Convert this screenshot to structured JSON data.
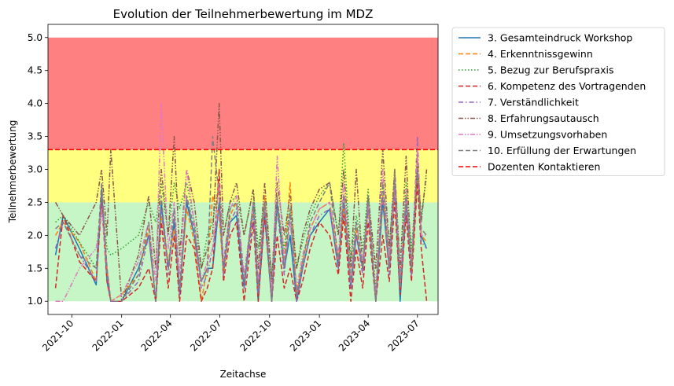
{
  "chart_data": {
    "type": "line",
    "title": "Evolution der Teilnehmerbewertung im MDZ",
    "xlabel": "Zeitachse",
    "ylabel": "Teilnehmerbewertung",
    "xlim": [
      "2021-08-18",
      "2023-08-08"
    ],
    "ylim": [
      0.8,
      5.2
    ],
    "x_ticks": [
      "2021-10-01",
      "2022-01-01",
      "2022-04-01",
      "2022-07-01",
      "2022-10-01",
      "2023-01-01",
      "2023-04-01",
      "2023-07-01"
    ],
    "x_tick_labels": [
      "2021-10",
      "2022-01",
      "2022-04",
      "2022-07",
      "2022-10",
      "2023-01",
      "2023-04",
      "2023-07"
    ],
    "y_ticks": [
      1.0,
      1.5,
      2.0,
      2.5,
      3.0,
      3.5,
      4.0,
      4.5,
      5.0
    ],
    "y_tick_labels": [
      "1.0",
      "1.5",
      "2.0",
      "2.5",
      "3.0",
      "3.5",
      "4.0",
      "4.5",
      "5.0"
    ],
    "x_tick_rotation": 45,
    "legend_placement": "outside-right-top",
    "grid": false,
    "bands": [
      {
        "from": 1.0,
        "to": 2.5,
        "color": "#c6f5c6"
      },
      {
        "from": 2.5,
        "to": 3.3,
        "color": "#ffff80"
      },
      {
        "from": 3.3,
        "to": 5.0,
        "color": "#ff8080"
      }
    ],
    "x": [
      "2021-09-01",
      "2021-09-15",
      "2021-10-15",
      "2021-11-15",
      "2021-11-25",
      "2021-12-05",
      "2021-12-12",
      "2022-01-01",
      "2022-02-01",
      "2022-02-20",
      "2022-03-05",
      "2022-03-15",
      "2022-03-28",
      "2022-04-08",
      "2022-04-18",
      "2022-05-01",
      "2022-05-15",
      "2022-05-28",
      "2022-06-08",
      "2022-06-18",
      "2022-06-30",
      "2022-07-08",
      "2022-07-20",
      "2022-08-01",
      "2022-08-15",
      "2022-09-01",
      "2022-09-10",
      "2022-09-22",
      "2022-10-05",
      "2022-10-15",
      "2022-10-28",
      "2022-11-08",
      "2022-11-20",
      "2022-12-01",
      "2022-12-15",
      "2023-01-01",
      "2023-01-20",
      "2023-02-05",
      "2023-02-15",
      "2023-02-28",
      "2023-03-10",
      "2023-03-22",
      "2023-04-01",
      "2023-04-15",
      "2023-04-28",
      "2023-05-10",
      "2023-05-20",
      "2023-05-30",
      "2023-06-10",
      "2023-06-20",
      "2023-07-01",
      "2023-07-08",
      "2023-07-18"
    ],
    "series": [
      {
        "name": "3. Gesamteindruck Workshop",
        "style": "solid",
        "color": "#1f77b4",
        "values": [
          1.7,
          2.3,
          1.8,
          1.25,
          2.7,
          1.3,
          1.0,
          1.0,
          1.5,
          2.0,
          1.0,
          2.5,
          1.5,
          2.2,
          1.1,
          2.5,
          2.0,
          1.3,
          1.5,
          1.5,
          2.5,
          1.5,
          2.2,
          2.3,
          1.2,
          2.5,
          1.0,
          2.3,
          1.0,
          2.5,
          1.5,
          2.0,
          1.0,
          1.5,
          2.0,
          2.2,
          2.4,
          1.5,
          2.5,
          1.2,
          2.0,
          1.5,
          2.5,
          1.0,
          2.5,
          1.5,
          2.8,
          1.0,
          2.5,
          1.5,
          3.0,
          2.0,
          1.8
        ]
      },
      {
        "name": "4. Erkenntnissgewinn",
        "style": "dashed",
        "color": "#ff7f0e",
        "values": [
          2.0,
          2.2,
          1.9,
          1.3,
          2.5,
          1.5,
          1.0,
          1.1,
          1.4,
          2.1,
          1.0,
          2.3,
          1.6,
          2.1,
          1.2,
          2.4,
          1.9,
          1.0,
          1.5,
          2.6,
          2.3,
          1.4,
          2.3,
          2.5,
          1.3,
          2.4,
          1.2,
          2.6,
          1.0,
          2.6,
          1.6,
          2.8,
          1.1,
          1.6,
          2.1,
          2.4,
          2.5,
          1.6,
          2.4,
          1.3,
          2.1,
          1.5,
          2.4,
          1.1,
          2.6,
          1.6,
          2.7,
          1.2,
          2.6,
          1.4,
          2.9,
          2.0,
          1.9
        ]
      },
      {
        "name": "5. Bezug zur Berufspraxis",
        "style": "dotted",
        "color": "#2ca02c",
        "values": [
          2.2,
          2.3,
          1.9,
          1.5,
          2.6,
          1.8,
          1.7,
          1.8,
          2.0,
          2.5,
          2.2,
          2.8,
          2.0,
          2.8,
          2.4,
          2.8,
          2.2,
          1.5,
          2.0,
          2.2,
          2.8,
          2.0,
          2.5,
          2.6,
          2.0,
          2.7,
          1.8,
          2.5,
          1.4,
          2.4,
          1.8,
          2.4,
          1.5,
          1.9,
          2.3,
          2.6,
          2.8,
          2.0,
          3.4,
          1.6,
          2.3,
          1.8,
          2.7,
          1.2,
          2.8,
          1.8,
          2.9,
          1.4,
          2.8,
          1.8,
          3.0,
          2.3,
          2.9
        ]
      },
      {
        "name": "6. Kompetenz des Vortragenden",
        "style": "dashed",
        "color": "#d62728",
        "values": [
          1.2,
          2.3,
          1.6,
          1.3,
          2.5,
          1.3,
          1.0,
          1.0,
          1.2,
          1.5,
          1.0,
          2.2,
          1.2,
          2.0,
          1.0,
          2.0,
          1.8,
          1.0,
          1.2,
          1.5,
          3.0,
          1.3,
          2.0,
          2.2,
          1.0,
          2.2,
          1.0,
          2.3,
          1.0,
          2.0,
          1.2,
          1.5,
          1.0,
          1.3,
          1.8,
          2.2,
          2.0,
          1.4,
          2.3,
          1.0,
          1.8,
          1.2,
          2.2,
          1.0,
          2.0,
          1.3,
          2.5,
          1.1,
          2.3,
          1.3,
          2.8,
          1.8,
          1.0
        ]
      },
      {
        "name": "7. Verständlichkeit",
        "style": "dashdot",
        "color": "#9467bd",
        "values": [
          1.8,
          2.2,
          1.7,
          1.3,
          2.6,
          1.4,
          1.0,
          1.0,
          1.3,
          2.0,
          1.0,
          2.4,
          1.4,
          2.3,
          1.1,
          2.6,
          2.0,
          1.2,
          1.4,
          1.8,
          2.4,
          1.4,
          2.2,
          2.4,
          1.2,
          2.3,
          1.1,
          2.4,
          1.0,
          2.4,
          1.4,
          2.3,
          1.0,
          1.5,
          2.0,
          2.3,
          2.4,
          1.5,
          2.6,
          1.2,
          2.0,
          1.4,
          2.4,
          1.0,
          2.6,
          1.4,
          2.7,
          1.2,
          2.5,
          1.4,
          3.5,
          1.9,
          1.8
        ]
      },
      {
        "name": "8. Erfahrungsautausch",
        "style": "dashdotdot",
        "color": "#8c564b",
        "values": [
          2.5,
          2.3,
          2.0,
          2.5,
          3.0,
          2.0,
          3.3,
          1.0,
          1.7,
          2.6,
          1.5,
          3.0,
          2.0,
          3.5,
          1.7,
          3.0,
          2.5,
          1.5,
          1.8,
          2.0,
          4.0,
          2.0,
          2.5,
          2.8,
          2.0,
          2.7,
          1.5,
          2.8,
          1.3,
          2.8,
          2.0,
          2.6,
          1.5,
          2.0,
          2.4,
          2.7,
          2.8,
          2.0,
          3.0,
          1.5,
          3.0,
          1.5,
          2.6,
          1.5,
          3.3,
          1.8,
          3.0,
          1.5,
          3.2,
          1.5,
          3.2,
          2.2,
          3.0
        ]
      },
      {
        "name": "9. Umsetzungsvorhaben",
        "style": "dashdotdot",
        "color": "#e377c2",
        "values": [
          1.0,
          1.0,
          1.5,
          1.8,
          2.4,
          1.5,
          1.0,
          1.1,
          1.6,
          2.2,
          1.3,
          4.0,
          1.8,
          2.5,
          1.4,
          3.0,
          2.2,
          1.3,
          1.6,
          1.8,
          2.8,
          1.6,
          2.4,
          2.6,
          1.4,
          2.5,
          1.3,
          2.5,
          1.1,
          3.2,
          1.6,
          2.2,
          1.2,
          1.7,
          2.1,
          2.4,
          2.5,
          1.7,
          2.8,
          1.3,
          2.2,
          1.6,
          2.5,
          1.1,
          3.0,
          1.6,
          2.9,
          1.3,
          2.7,
          1.5,
          3.3,
          2.0,
          2.0
        ]
      },
      {
        "name": "10. Erfüllung der Erwartungen",
        "style": "dashed",
        "color": "#7f7f7f",
        "values": [
          2.1,
          2.2,
          1.7,
          1.5,
          2.8,
          1.5,
          1.0,
          1.0,
          1.4,
          2.2,
          1.0,
          2.6,
          1.5,
          2.4,
          1.2,
          2.6,
          2.1,
          1.3,
          1.5,
          3.5,
          2.6,
          1.5,
          2.4,
          2.5,
          1.3,
          2.5,
          1.2,
          2.5,
          1.0,
          2.6,
          1.5,
          2.4,
          1.1,
          1.6,
          2.2,
          2.5,
          2.8,
          1.6,
          2.6,
          1.3,
          2.2,
          1.5,
          2.6,
          1.0,
          2.8,
          1.5,
          3.0,
          1.2,
          2.6,
          1.5,
          3.0,
          2.1,
          2.0
        ]
      }
    ],
    "threshold": {
      "name": "Dozenten Kontaktieren",
      "value": 3.3,
      "style": "dashed",
      "color": "#ff0000"
    }
  }
}
